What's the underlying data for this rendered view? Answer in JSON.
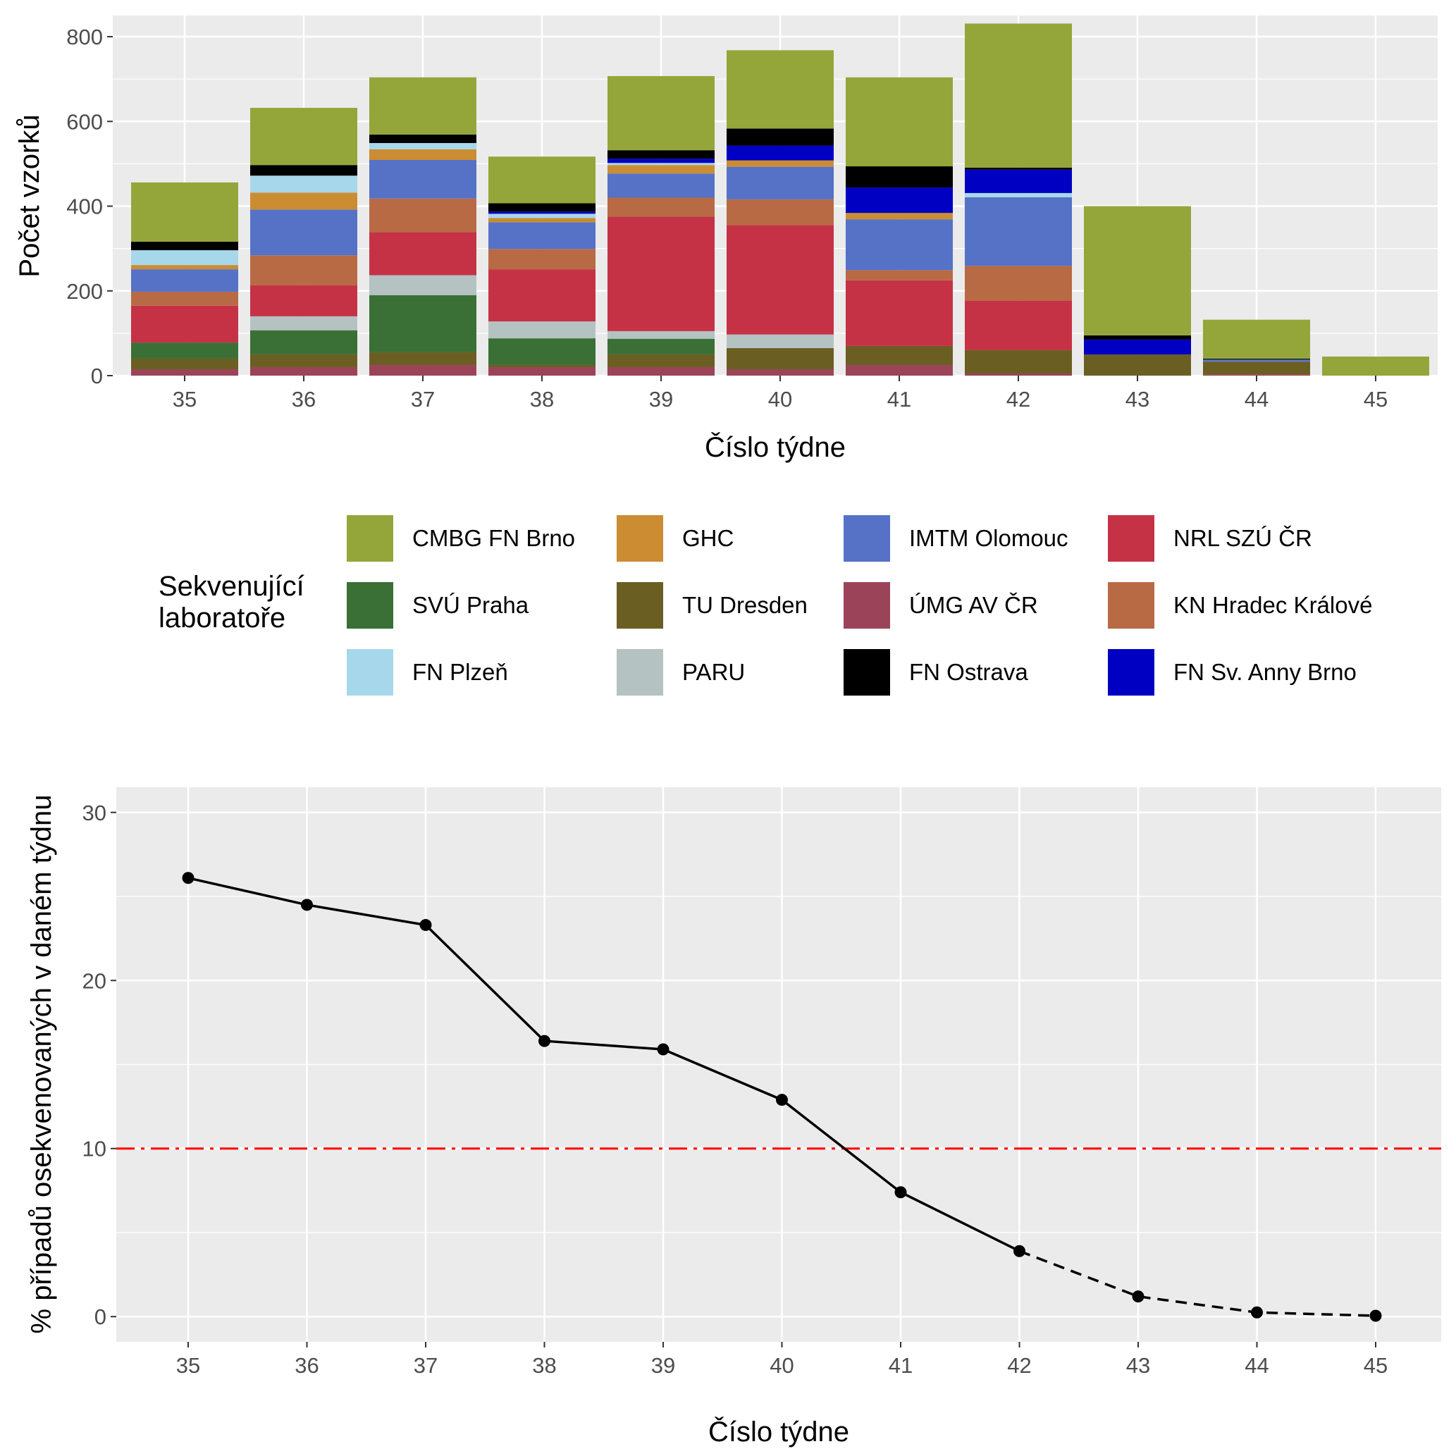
{
  "chart_data": [
    {
      "type": "bar",
      "stacked": true,
      "xlabel": "Číslo týdne",
      "ylabel": "Počet vzorků",
      "ylim": [
        0,
        850
      ],
      "yticks": [
        0,
        200,
        400,
        600,
        800
      ],
      "grid": true,
      "legend_position": "bottom",
      "legend_title": [
        "Sekvenující",
        "laboratoře"
      ],
      "categories": [
        "35",
        "36",
        "37",
        "38",
        "39",
        "40",
        "41",
        "42",
        "43",
        "44",
        "45"
      ],
      "series": [
        {
          "name": "ÚMG AV ČR",
          "color": "#9B4459",
          "values": [
            15,
            20,
            25,
            20,
            20,
            15,
            25,
            5,
            0,
            3,
            0
          ]
        },
        {
          "name": "TU Dresden",
          "color": "#6B5E22",
          "values": [
            25,
            30,
            30,
            5,
            30,
            50,
            45,
            55,
            50,
            30,
            0
          ]
        },
        {
          "name": "SVÚ Praha",
          "color": "#3A7035",
          "values": [
            38,
            57,
            135,
            63,
            37,
            0,
            0,
            0,
            0,
            0,
            0
          ]
        },
        {
          "name": "PARU",
          "color": "#B4C2C2",
          "values": [
            0,
            33,
            47,
            40,
            18,
            32,
            0,
            0,
            0,
            0,
            0
          ]
        },
        {
          "name": "NRL SZÚ ČR",
          "color": "#C53246",
          "values": [
            87,
            73,
            102,
            123,
            270,
            258,
            155,
            117,
            0,
            0,
            0
          ]
        },
        {
          "name": "KN Hradec Králové",
          "color": "#B86A45",
          "values": [
            33,
            71,
            79,
            48,
            45,
            61,
            24,
            82,
            0,
            0,
            0
          ]
        },
        {
          "name": "IMTM Olomouc",
          "color": "#5572C7",
          "values": [
            53,
            108,
            91,
            63,
            57,
            77,
            120,
            162,
            0,
            5,
            0
          ]
        },
        {
          "name": "GHC",
          "color": "#CB8C32",
          "values": [
            10,
            40,
            25,
            10,
            20,
            15,
            15,
            0,
            0,
            0,
            0
          ]
        },
        {
          "name": "FN Plzeň",
          "color": "#A7D7EA",
          "values": [
            35,
            40,
            15,
            10,
            5,
            0,
            0,
            10,
            0,
            0,
            0
          ]
        },
        {
          "name": "FN Sv. Anny Brno",
          "color": "#0000C2",
          "values": [
            0,
            0,
            0,
            5,
            10,
            35,
            60,
            55,
            35,
            0,
            0
          ]
        },
        {
          "name": "FN Ostrava",
          "color": "#000000",
          "values": [
            20,
            25,
            20,
            20,
            20,
            40,
            50,
            5,
            10,
            2,
            0
          ]
        },
        {
          "name": "CMBG FN Brno",
          "color": "#94A63A",
          "values": [
            140,
            135,
            135,
            110,
            175,
            185,
            210,
            340,
            305,
            92,
            45
          ]
        }
      ]
    },
    {
      "type": "line",
      "xlabel": "Číslo týdne",
      "ylabel": "% případů osekvenovaných v daném týdnu",
      "ylim": [
        -1.5,
        31.5
      ],
      "yticks": [
        0,
        10,
        20,
        30
      ],
      "grid": true,
      "x": [
        35,
        36,
        37,
        38,
        39,
        40,
        41,
        42,
        43,
        44,
        45
      ],
      "y": [
        26.1,
        24.5,
        23.3,
        16.4,
        15.9,
        12.9,
        7.4,
        3.9,
        1.2,
        0.25,
        0.05
      ],
      "solid_until_x": 42,
      "line_color": "#000000",
      "reference_line": {
        "y": 10,
        "color": "#FF0000",
        "style": "dashdot"
      }
    }
  ],
  "legend": {
    "title_lines": [
      "Sekvenující",
      "laboratoře"
    ],
    "items": [
      {
        "label": "CMBG FN Brno",
        "color": "#94A63A"
      },
      {
        "label": "GHC",
        "color": "#CB8C32"
      },
      {
        "label": "IMTM Olomouc",
        "color": "#5572C7"
      },
      {
        "label": "NRL SZÚ ČR",
        "color": "#C53246"
      },
      {
        "label": "SVÚ Praha",
        "color": "#3A7035"
      },
      {
        "label": "TU Dresden",
        "color": "#6B5E22"
      },
      {
        "label": "ÚMG AV ČR",
        "color": "#9B4459"
      },
      {
        "label": "KN Hradec Králové",
        "color": "#B86A45"
      },
      {
        "label": "FN Plzeň",
        "color": "#A7D7EA"
      },
      {
        "label": "PARU",
        "color": "#B4C2C2"
      },
      {
        "label": "FN Ostrava",
        "color": "#000000"
      },
      {
        "label": "FN Sv. Anny Brno",
        "color": "#0000C2"
      }
    ]
  }
}
